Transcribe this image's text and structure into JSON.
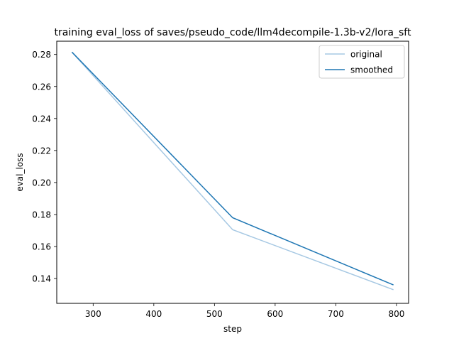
{
  "chart_data": {
    "type": "line",
    "title": "training eval_loss of saves/pseudo_code/llm4decompile-1.3b-v2/lora_sft",
    "xlabel": "step",
    "ylabel": "eval_loss",
    "xlim": [
      240,
      820
    ],
    "ylim": [
      0.1245,
      0.2883
    ],
    "xticks": [
      300,
      400,
      500,
      600,
      700,
      800
    ],
    "yticks": [
      0.14,
      0.16,
      0.18,
      0.2,
      0.22,
      0.24,
      0.26,
      0.28
    ],
    "grid": false,
    "legend_position": "top-right",
    "series": [
      {
        "name": "original",
        "color": "#a6c8e3",
        "x": [
          265,
          530,
          795
        ],
        "y": [
          0.2815,
          0.1705,
          0.133
        ]
      },
      {
        "name": "smoothed",
        "color": "#1f77b4",
        "x": [
          265,
          530,
          795
        ],
        "y": [
          0.2815,
          0.178,
          0.136
        ]
      }
    ]
  }
}
